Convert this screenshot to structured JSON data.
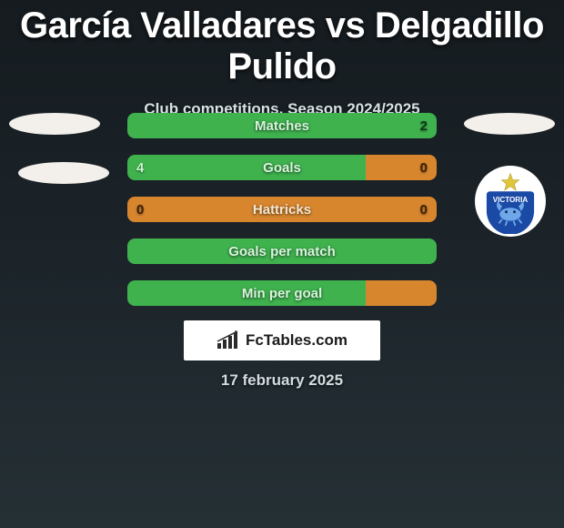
{
  "header": {
    "title": "García Valladares vs Delgadillo Pulido",
    "subtitle": "Club competitions, Season 2024/2025"
  },
  "colors": {
    "green": "#3fb24e",
    "orange": "#d8862e",
    "label_text": "#d7f4dc",
    "label_text_green": "#d7f4dc",
    "value_text": "#0f3a17",
    "value_text_orange": "#5a3106",
    "badge_bg": "#f3f0eb",
    "crest_bg": "#ffffff",
    "crest_blue": "#1b4aa6",
    "crest_star": "#e0c43a"
  },
  "bars": [
    {
      "label": "Matches",
      "left_val": "",
      "right_val": "2",
      "left_pct": 50,
      "right_pct": 50,
      "left_color": "#3fb24e",
      "right_color": "#3fb24e",
      "show_left_val": false,
      "show_right_val": true
    },
    {
      "label": "Goals",
      "left_val": "4",
      "right_val": "0",
      "left_pct": 77,
      "right_pct": 23,
      "left_color": "#3fb24e",
      "right_color": "#d8862e",
      "show_left_val": true,
      "show_right_val": true
    },
    {
      "label": "Hattricks",
      "left_val": "0",
      "right_val": "0",
      "left_pct": 50,
      "right_pct": 50,
      "left_color": "#d8862e",
      "right_color": "#d8862e",
      "show_left_val": true,
      "show_right_val": true
    },
    {
      "label": "Goals per match",
      "left_val": "",
      "right_val": "",
      "left_pct": 50,
      "right_pct": 50,
      "left_color": "#3fb24e",
      "right_color": "#3fb24e",
      "show_left_val": false,
      "show_right_val": false
    },
    {
      "label": "Min per goal",
      "left_val": "",
      "right_val": "",
      "left_pct": 77,
      "right_pct": 23,
      "left_color": "#3fb24e",
      "right_color": "#d8862e",
      "show_left_val": false,
      "show_right_val": false
    }
  ],
  "brand": {
    "text": "FcTables.com"
  },
  "crest": {
    "text_top": "VICTORIA"
  },
  "date": "17 february 2025"
}
